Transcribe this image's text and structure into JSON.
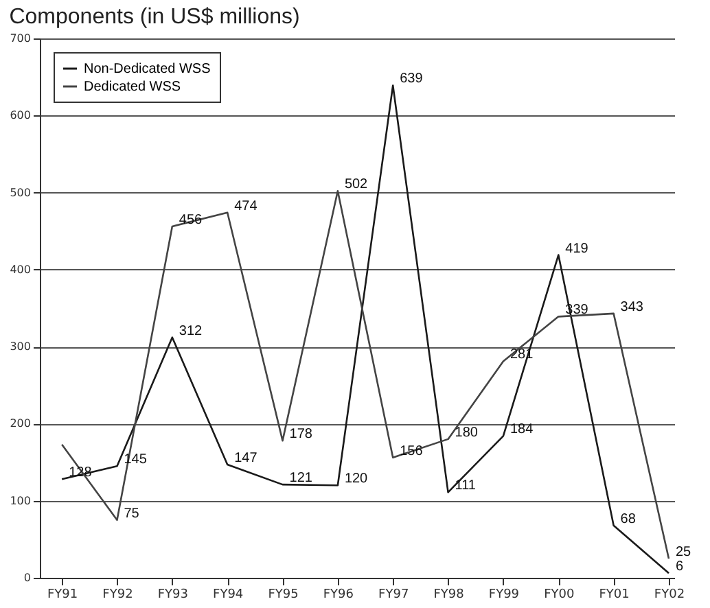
{
  "chart_data": {
    "type": "line",
    "title": "Components (in US$ millions)",
    "categories": [
      "FY91",
      "FY92",
      "FY93",
      "FY94",
      "FY95",
      "FY96",
      "FY97",
      "FY98",
      "FY99",
      "FY00",
      "FY01",
      "FY02"
    ],
    "series": [
      {
        "name": "Non-Dedicated WSS",
        "color": "#1a1a1a",
        "values": [
          128,
          145,
          312,
          147,
          121,
          120,
          639,
          111,
          184,
          419,
          68,
          6
        ],
        "value_labels": [
          "128",
          "145",
          "312",
          "147",
          "121",
          "120",
          "639",
          "111",
          "184",
          "419",
          "68",
          "6"
        ]
      },
      {
        "name": "Dedicated WSS",
        "color": "#444444",
        "values": [
          173,
          75,
          456,
          474,
          178,
          502,
          156,
          180,
          281,
          339,
          343,
          25
        ],
        "value_labels": [
          null,
          "75",
          "456",
          "474",
          "178",
          "502",
          "156",
          "180",
          "281",
          "339",
          "343",
          "25"
        ]
      }
    ],
    "ylim": [
      0,
      700
    ],
    "yticks": [
      0,
      100,
      200,
      300,
      400,
      500,
      600,
      700
    ],
    "grid": "y",
    "legend": "top left",
    "marker": "none",
    "line_style": "solid"
  }
}
